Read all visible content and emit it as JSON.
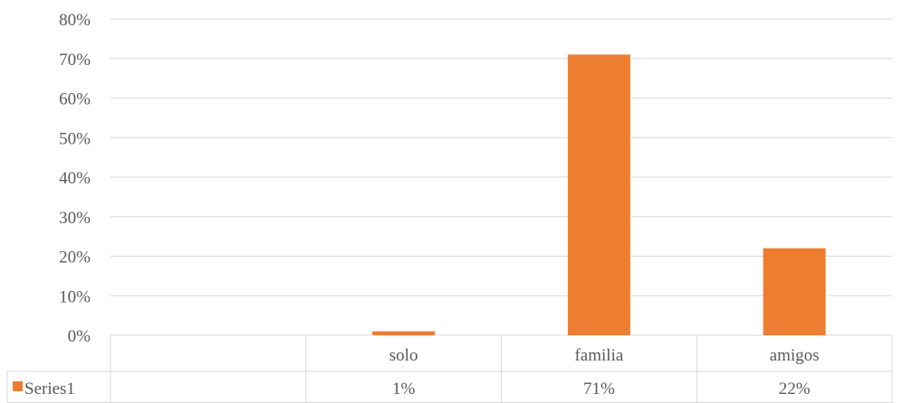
{
  "chart_data": {
    "type": "bar",
    "categories": [
      "",
      "solo",
      "familia",
      "amigos"
    ],
    "series": [
      {
        "name": "Series1",
        "values": [
          null,
          0.01,
          0.71,
          0.22
        ],
        "labels": [
          "",
          "1%",
          "71%",
          "22%"
        ],
        "color": "#ED7D31"
      }
    ],
    "ylim": [
      0,
      0.8
    ],
    "yticks": [
      "0%",
      "10%",
      "20%",
      "30%",
      "40%",
      "50%",
      "60%",
      "70%",
      "80%"
    ],
    "grid": true,
    "legend": "data-table",
    "title": "",
    "xlabel": "",
    "ylabel": ""
  }
}
